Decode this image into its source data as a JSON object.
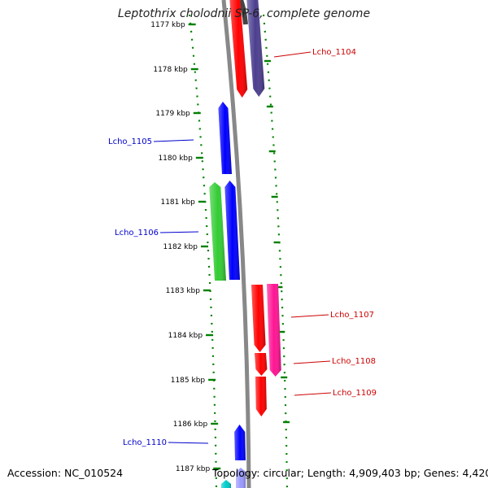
{
  "title": "Leptothrix cholodnii SP-6, complete genome",
  "footer": {
    "accession": "Accession: NC_010524",
    "summary": "Topology: circular; Length: 4,909,403 bp; Genes: 4,420"
  },
  "colors": {
    "label_left": "#0000cc",
    "label_right": "#cc0000",
    "backbone": "#888888",
    "ticks": "#008000"
  },
  "ruler": [
    {
      "label": "1177 kbp",
      "partial": true
    },
    {
      "label": "1178 kbp"
    },
    {
      "label": "1179 kbp"
    },
    {
      "label": "1180 kbp"
    },
    {
      "label": "1181 kbp"
    },
    {
      "label": "1182 kbp"
    },
    {
      "label": "1183 kbp"
    },
    {
      "label": "1184 kbp"
    },
    {
      "label": "1185 kbp"
    },
    {
      "label": "1186 kbp"
    },
    {
      "label": "1187 kbp"
    }
  ],
  "genes": [
    {
      "name": "",
      "color": "#ff0000",
      "strand": "+"
    },
    {
      "name": "Lcho_1104",
      "color": "#4b3f8f",
      "strand": "+"
    },
    {
      "name": "Lcho_1105",
      "color": "#0000ff",
      "strand": "-"
    },
    {
      "name": "Lcho_1106",
      "color": "#33cc33",
      "strand": "-"
    },
    {
      "name": "",
      "color": "#0000ff",
      "strand": "-"
    },
    {
      "name": "",
      "color": "#ff0000",
      "strand": "+"
    },
    {
      "name": "Lcho_1107",
      "color": "#ff1493",
      "strand": "+"
    },
    {
      "name": "Lcho_1108",
      "color": "#ff0000",
      "strand": "+"
    },
    {
      "name": "Lcho_1109",
      "color": "#ff0000",
      "strand": "+"
    },
    {
      "name": "Lcho_1110",
      "color": "#0000ff",
      "strand": "-"
    },
    {
      "name": "",
      "color": "#00cccc",
      "strand": "-"
    },
    {
      "name": "",
      "color": "#9999ff",
      "strand": "-"
    }
  ]
}
